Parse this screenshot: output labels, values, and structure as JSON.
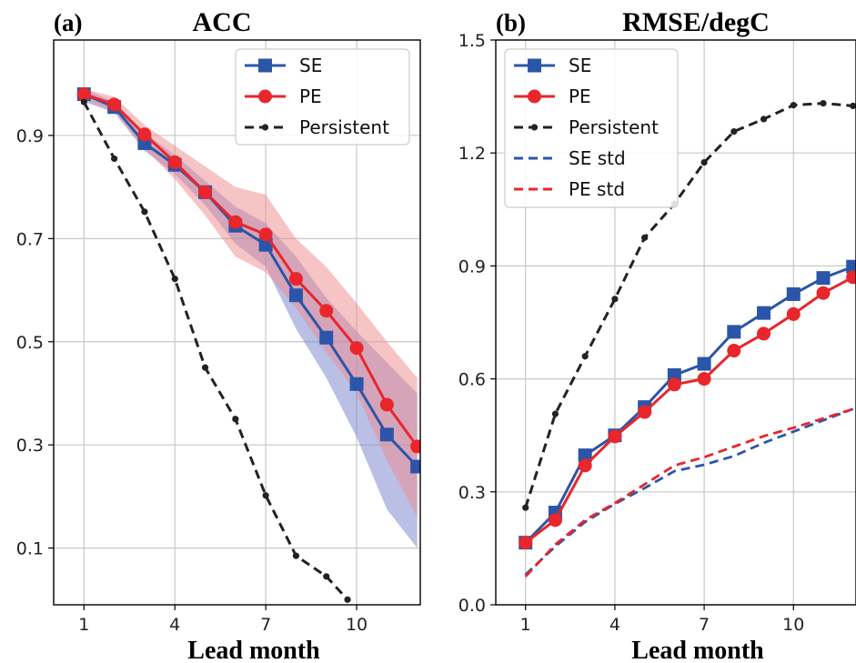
{
  "colors": {
    "SE": "#2b55a8",
    "PE": "#e8262b",
    "Persistent": "#222222",
    "SE_band": "#7580cc",
    "PE_band": "#f08a8e"
  },
  "chart_data": [
    {
      "type": "line",
      "tag": "(a)",
      "title": "ACC",
      "xlabel": "Lead month",
      "ylabel": "",
      "xlim": [
        0,
        12.1
      ],
      "ylim": [
        -0.01,
        1.085
      ],
      "xticks": [
        1,
        4,
        7,
        10
      ],
      "yticks": [
        0.1,
        0.3,
        0.5,
        0.7,
        0.9
      ],
      "ytick_labels": [
        "0.1",
        "0.3",
        "0.5",
        "0.7",
        "0.9"
      ],
      "grid": true,
      "legend": "top-right",
      "legend_entries": [
        "SE",
        "PE",
        "Persistent"
      ],
      "x": [
        1,
        2,
        3,
        4,
        5,
        6,
        7,
        8,
        9,
        10,
        11,
        12
      ],
      "series": [
        {
          "name": "SE",
          "style": "solid-square",
          "color": "SE",
          "values": [
            0.98,
            0.955,
            0.885,
            0.843,
            0.79,
            0.725,
            0.688,
            0.59,
            0.508,
            0.418,
            0.32,
            0.258
          ]
        },
        {
          "name": "PE",
          "style": "solid-circle",
          "color": "PE",
          "values": [
            0.98,
            0.96,
            0.902,
            0.848,
            0.79,
            0.732,
            0.708,
            0.622,
            0.56,
            0.488,
            0.378,
            0.297
          ]
        },
        {
          "name": "Persistent",
          "style": "dashed-dot",
          "color": "Persistent",
          "x": [
            1,
            2,
            3,
            4,
            5,
            6,
            7,
            8,
            9,
            9.7
          ],
          "values": [
            0.965,
            0.855,
            0.752,
            0.622,
            0.45,
            0.35,
            0.202,
            0.085,
            0.045,
            0.0
          ]
        }
      ],
      "bands": [
        {
          "of": "SE",
          "color": "SE_band",
          "lower": [
            0.965,
            0.945,
            0.87,
            0.825,
            0.765,
            0.69,
            0.645,
            0.525,
            0.43,
            0.315,
            0.175,
            0.1
          ],
          "upper": [
            0.99,
            0.965,
            0.905,
            0.862,
            0.812,
            0.762,
            0.73,
            0.665,
            0.585,
            0.52,
            0.46,
            0.4
          ]
        },
        {
          "of": "PE",
          "color": "PE_band",
          "lower": [
            0.97,
            0.945,
            0.875,
            0.815,
            0.745,
            0.665,
            0.635,
            0.565,
            0.48,
            0.4,
            0.27,
            0.16
          ],
          "upper": [
            0.99,
            0.975,
            0.92,
            0.88,
            0.84,
            0.8,
            0.785,
            0.7,
            0.645,
            0.575,
            0.5,
            0.43
          ]
        }
      ]
    },
    {
      "type": "line",
      "tag": "(b)",
      "title": "RMSE/degC",
      "xlabel": "Lead month",
      "ylabel": "",
      "xlim": [
        0,
        12.1
      ],
      "ylim": [
        0,
        1.5
      ],
      "xticks": [
        1,
        4,
        7,
        10
      ],
      "yticks": [
        0.0,
        0.3,
        0.6,
        0.9,
        1.2,
        1.5
      ],
      "ytick_labels": [
        "0.0",
        "0.3",
        "0.6",
        "0.9",
        "1.2",
        "1.5"
      ],
      "grid": true,
      "legend": "top-left",
      "legend_entries": [
        "SE",
        "PE",
        "Persistent",
        "SE std",
        "PE std"
      ],
      "x": [
        1,
        2,
        3,
        4,
        5,
        6,
        7,
        8,
        9,
        10,
        11,
        12
      ],
      "series": [
        {
          "name": "SE",
          "style": "solid-square",
          "color": "SE",
          "values": [
            0.165,
            0.245,
            0.397,
            0.45,
            0.525,
            0.61,
            0.64,
            0.725,
            0.775,
            0.825,
            0.868,
            0.898
          ]
        },
        {
          "name": "PE",
          "style": "solid-circle",
          "color": "PE",
          "values": [
            0.165,
            0.225,
            0.37,
            0.447,
            0.512,
            0.585,
            0.6,
            0.675,
            0.72,
            0.772,
            0.828,
            0.87
          ]
        },
        {
          "name": "Persistent",
          "style": "dashed-dot",
          "color": "Persistent",
          "values": [
            0.258,
            0.507,
            0.66,
            0.812,
            0.975,
            1.065,
            1.175,
            1.257,
            1.29,
            1.327,
            1.332,
            1.325
          ]
        },
        {
          "name": "SE std",
          "style": "dashed",
          "color": "SE",
          "values": [
            0.08,
            0.155,
            0.22,
            0.268,
            0.31,
            0.355,
            0.372,
            0.395,
            0.43,
            0.46,
            0.49,
            0.52
          ]
        },
        {
          "name": "PE std",
          "style": "dashed",
          "color": "PE",
          "values": [
            0.075,
            0.16,
            0.225,
            0.27,
            0.32,
            0.37,
            0.392,
            0.42,
            0.448,
            0.47,
            0.495,
            0.52
          ]
        }
      ]
    }
  ]
}
